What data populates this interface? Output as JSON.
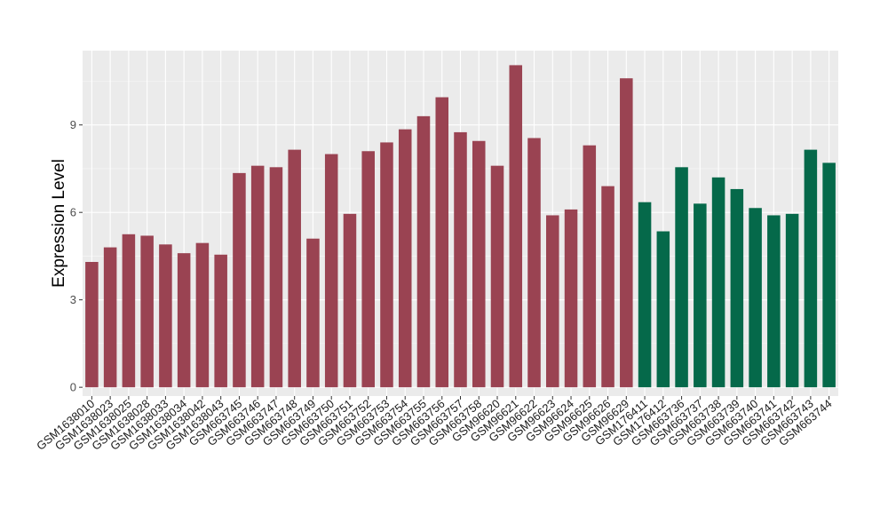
{
  "chart_data": {
    "type": "bar",
    "title": "",
    "xlabel": "",
    "ylabel": "Expression Level",
    "ylim": [
      -0.3,
      11.55
    ],
    "yticks": [
      0,
      3,
      6,
      9
    ],
    "grid": true,
    "legend": "none",
    "colors": {
      "panel_background": "#ebebeb",
      "grid_major": "#ffffff",
      "series_1": "#9a4352",
      "series_2": "#05694a"
    },
    "categories": [
      "GSM1638010",
      "GSM1638023",
      "GSM1638025",
      "GSM1638028",
      "GSM1638033",
      "GSM1638034",
      "GSM1638042",
      "GSM1638043",
      "GSM663745",
      "GSM663746",
      "GSM663747",
      "GSM663748",
      "GSM663749",
      "GSM663750",
      "GSM663751",
      "GSM663752",
      "GSM663753",
      "GSM663754",
      "GSM663755",
      "GSM663756",
      "GSM663757",
      "GSM663758",
      "GSM96620",
      "GSM96621",
      "GSM96622",
      "GSM96623",
      "GSM96624",
      "GSM96625",
      "GSM96626",
      "GSM96629",
      "GSM176411",
      "GSM176412",
      "GSM663736",
      "GSM663737",
      "GSM663738",
      "GSM663739",
      "GSM663740",
      "GSM663741",
      "GSM663742",
      "GSM663743",
      "GSM663744"
    ],
    "values": [
      4.3,
      4.8,
      5.25,
      5.2,
      4.9,
      4.6,
      4.95,
      4.55,
      7.35,
      7.6,
      7.55,
      8.15,
      5.1,
      8.0,
      5.95,
      8.1,
      8.4,
      8.85,
      9.3,
      9.95,
      8.75,
      8.45,
      7.6,
      11.05,
      8.55,
      5.9,
      6.1,
      8.3,
      6.9,
      10.6,
      6.35,
      5.35,
      7.55,
      6.3,
      7.2,
      6.8,
      6.15,
      5.9,
      5.95,
      8.15,
      7.7
    ],
    "bar_colors": [
      "#9a4352",
      "#9a4352",
      "#9a4352",
      "#9a4352",
      "#9a4352",
      "#9a4352",
      "#9a4352",
      "#9a4352",
      "#9a4352",
      "#9a4352",
      "#9a4352",
      "#9a4352",
      "#9a4352",
      "#9a4352",
      "#9a4352",
      "#9a4352",
      "#9a4352",
      "#9a4352",
      "#9a4352",
      "#9a4352",
      "#9a4352",
      "#9a4352",
      "#9a4352",
      "#9a4352",
      "#9a4352",
      "#9a4352",
      "#9a4352",
      "#9a4352",
      "#9a4352",
      "#9a4352",
      "#05694a",
      "#05694a",
      "#05694a",
      "#05694a",
      "#05694a",
      "#05694a",
      "#05694a",
      "#05694a",
      "#05694a",
      "#05694a",
      "#05694a"
    ]
  }
}
